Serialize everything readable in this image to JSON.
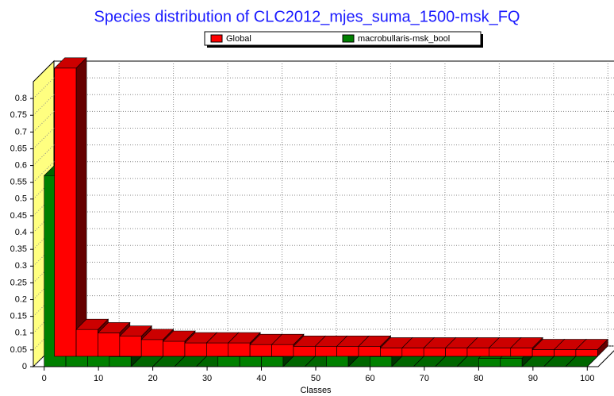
{
  "chart_data": {
    "type": "histogram",
    "title": "Species distribution of CLC2012_mjes_suma_1500-msk_FQ",
    "x_label": "Classes",
    "bins": [
      0,
      4,
      8,
      12,
      16,
      20,
      24,
      28,
      32,
      36,
      40,
      44,
      48,
      52,
      56,
      60,
      64,
      68,
      72,
      76,
      80,
      84,
      88,
      92,
      96,
      100
    ],
    "series": [
      {
        "name": "Global",
        "color": "#ff0000",
        "values": [
          0.86,
          0.08,
          0.07,
          0.06,
          0.05,
          0.045,
          0.04,
          0.04,
          0.04,
          0.035,
          0.035,
          0.03,
          0.03,
          0.03,
          0.03,
          0.025,
          0.025,
          0.025,
          0.025,
          0.025,
          0.025,
          0.025,
          0.02,
          0.02,
          0.02
        ]
      },
      {
        "name": "macrobullaris-msk_bool",
        "color": "#008000",
        "values": [
          0.57,
          0.06,
          0.06,
          0.03,
          0,
          0,
          0,
          0,
          0.03,
          0.03,
          0.03,
          0,
          0,
          0.06,
          0,
          0.03,
          0,
          0,
          0,
          0,
          0.025,
          0.025,
          0,
          0,
          0
        ]
      }
    ],
    "xlim": [
      -2,
      102
    ],
    "xticks": [
      0,
      10,
      20,
      30,
      40,
      50,
      60,
      70,
      80,
      90,
      100
    ],
    "ylim": [
      0,
      0.85
    ],
    "yticks": [
      0,
      0.05,
      0.1,
      0.15,
      0.2,
      0.25,
      0.3,
      0.35,
      0.4,
      0.45,
      0.5,
      0.55,
      0.6,
      0.65,
      0.7,
      0.75,
      0.8
    ],
    "grid": true
  }
}
